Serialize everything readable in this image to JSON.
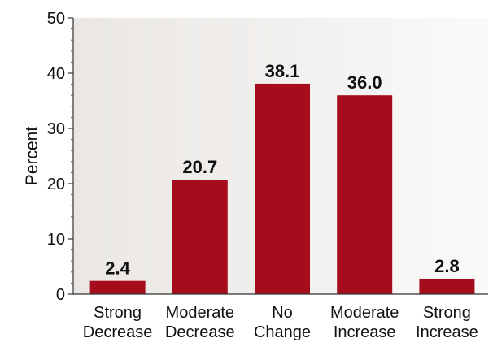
{
  "chart_data": {
    "type": "bar",
    "title": "",
    "xlabel": "",
    "ylabel": "Percent",
    "ylim": [
      0,
      50
    ],
    "yticks": [
      0,
      10,
      20,
      30,
      40,
      50
    ],
    "grid": false,
    "background": "gradient-light",
    "categories": [
      [
        "Strong",
        "Decrease"
      ],
      [
        "Moderate",
        "Decrease"
      ],
      [
        "No",
        "Change"
      ],
      [
        "Moderate",
        "Increase"
      ],
      [
        "Strong",
        "Increase"
      ]
    ],
    "values": [
      2.4,
      20.7,
      38.1,
      36.0,
      2.8
    ],
    "value_labels": [
      "2.4",
      "20.7",
      "38.1",
      "36.0",
      "2.8"
    ],
    "bar_color": "#a50d1c"
  }
}
